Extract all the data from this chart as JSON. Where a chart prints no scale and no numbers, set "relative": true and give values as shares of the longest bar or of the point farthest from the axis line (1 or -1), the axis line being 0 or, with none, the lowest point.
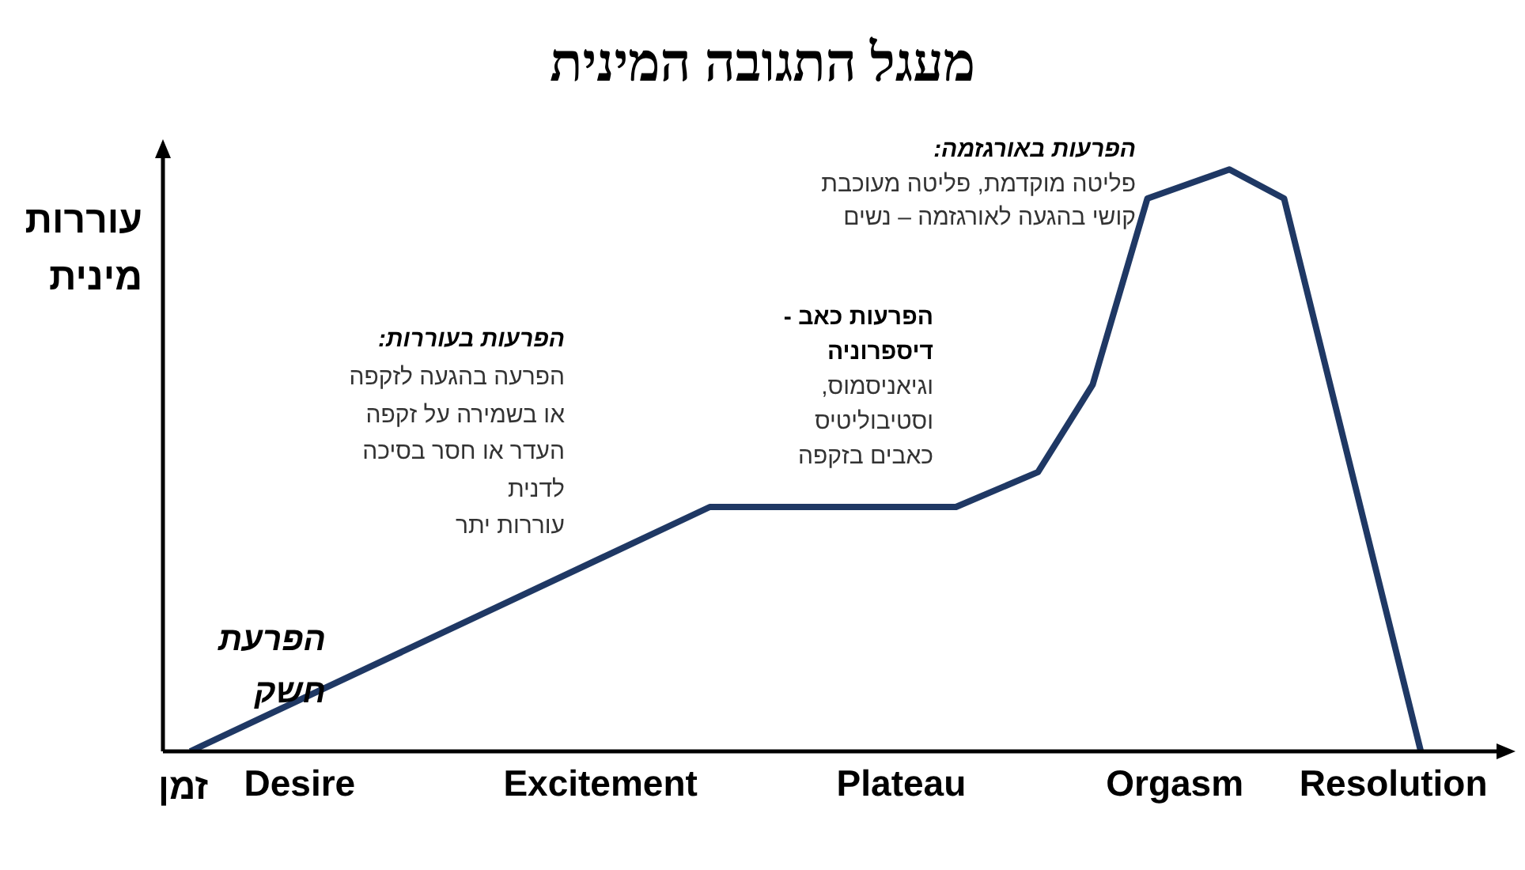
{
  "chart_data": {
    "type": "line",
    "title": "מעגל התגובה המינית",
    "xlabel": "זמן",
    "ylabel": "עוררות\nמינית",
    "relative": true,
    "categories": [
      null,
      null,
      null,
      null,
      null,
      "Desire",
      null,
      null,
      null,
      null,
      null,
      null,
      null,
      null,
      null,
      null,
      "Excitement",
      null,
      null,
      null,
      null,
      null,
      null,
      null,
      null,
      null,
      null,
      "Plateau",
      null,
      null,
      null,
      null,
      null,
      null,
      null,
      null,
      null,
      "Orgasm",
      null,
      null,
      null,
      null,
      null,
      null,
      null,
      "Resolution",
      null,
      null,
      null,
      null
    ],
    "series": [
      {
        "color": "#1f3864",
        "values": [
          null,
          0,
          null,
          null,
          null,
          null,
          null,
          null,
          null,
          null,
          null,
          null,
          null,
          null,
          null,
          null,
          null,
          null,
          null,
          null,
          0.42,
          null,
          null,
          null,
          null,
          null,
          null,
          null,
          null,
          0.42,
          null,
          null,
          0.48,
          null,
          0.63,
          null,
          0.95,
          null,
          null,
          1,
          null,
          0.95,
          null,
          null,
          null,
          null,
          0,
          null,
          null,
          null
        ]
      }
    ],
    "annotations": [
      "הפרעות באורגזמה:",
      "פליטה מוקדמת, פליטה מעוכבת\nקושי בהגעה לאורגזמה – נשים",
      "הפרעות כאב -\nדיספרוניה",
      "וגיאניסמוס,\nוסטיבוליטיס\nכאבים בזקפה",
      "הפרעות בעוררות:",
      "הפרעה בהגעה לזקפה\nאו בשמירה על זקפה\nהעדר או חסר בסיכה\nלדנית\nעוררות יתר",
      "הפרעת\nחשק"
    ],
    "grid": false,
    "legend": false
  }
}
